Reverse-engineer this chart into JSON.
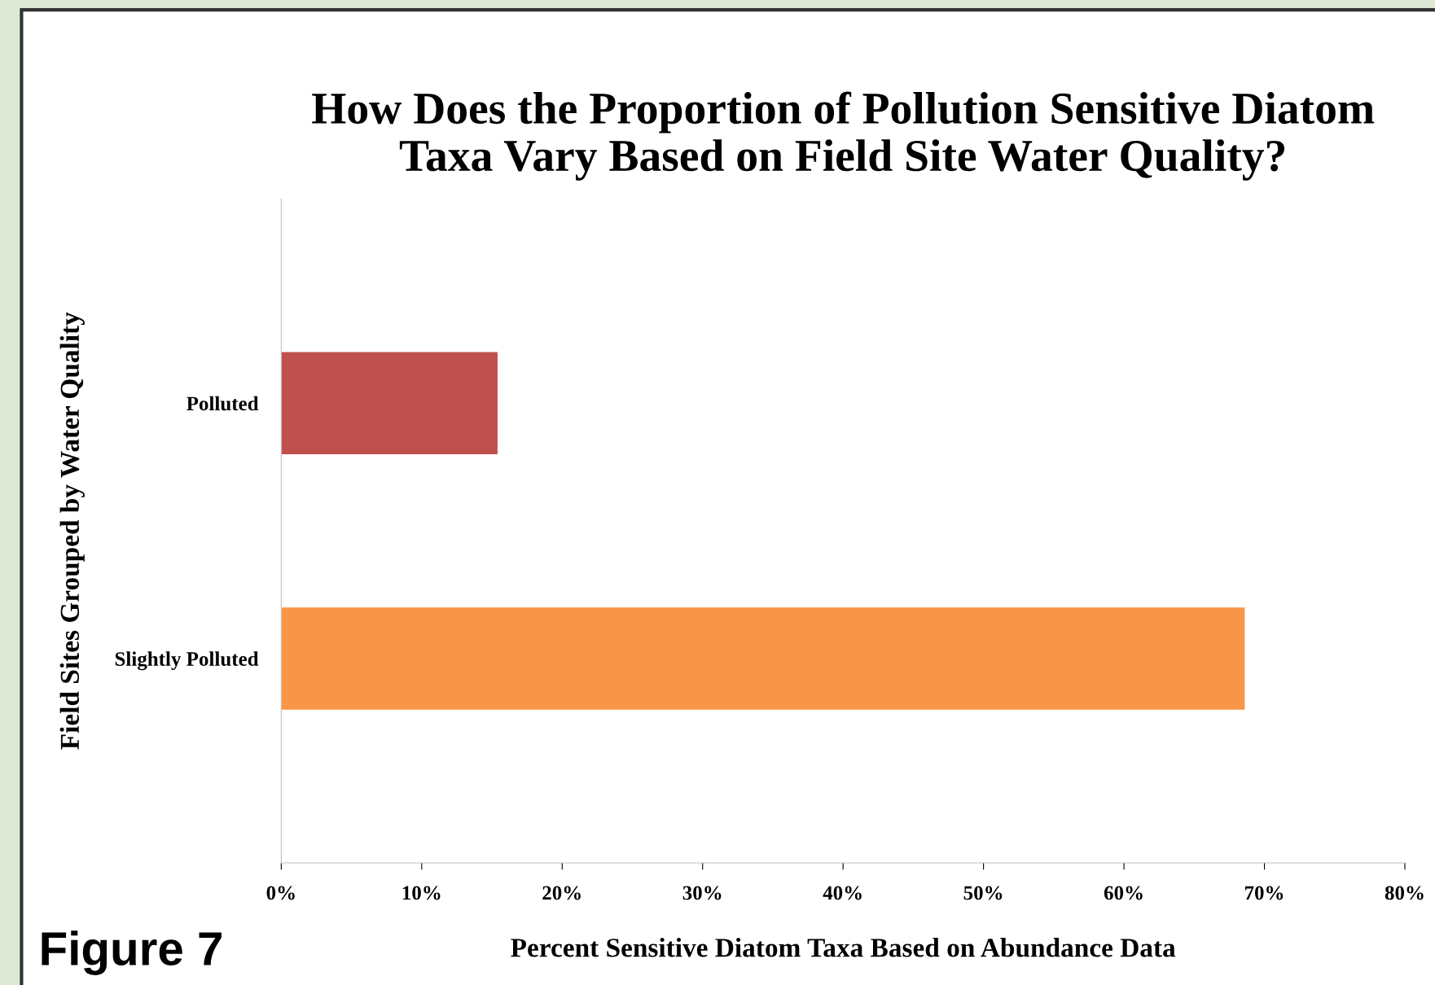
{
  "chart_data": {
    "type": "bar",
    "orientation": "horizontal",
    "title": "How Does the Proportion of Pollution Sensitive Diatom\nTaxa Vary Based on Field Site Water Quality?",
    "xlabel": "Percent Sensitive Diatom Taxa Based on Abundance Data",
    "ylabel": "Field Sites Grouped by Water Quality",
    "categories": [
      "Polluted",
      "Slightly Polluted"
    ],
    "values": [
      15.4,
      68.6
    ],
    "colors": [
      "#c0504d",
      "#f79646"
    ],
    "xlim": [
      0,
      80
    ],
    "xticks": [
      {
        "value": 0,
        "label": "0%"
      },
      {
        "value": 10,
        "label": "10%"
      },
      {
        "value": 20,
        "label": "20%"
      },
      {
        "value": 30,
        "label": "30%"
      },
      {
        "value": 40,
        "label": "40%"
      },
      {
        "value": 50,
        "label": "50%"
      },
      {
        "value": 60,
        "label": "60%"
      },
      {
        "value": 70,
        "label": "70%"
      },
      {
        "value": 80,
        "label": "80%"
      }
    ],
    "grid": false,
    "legend": false,
    "annotations": [
      "Figure 7"
    ]
  }
}
